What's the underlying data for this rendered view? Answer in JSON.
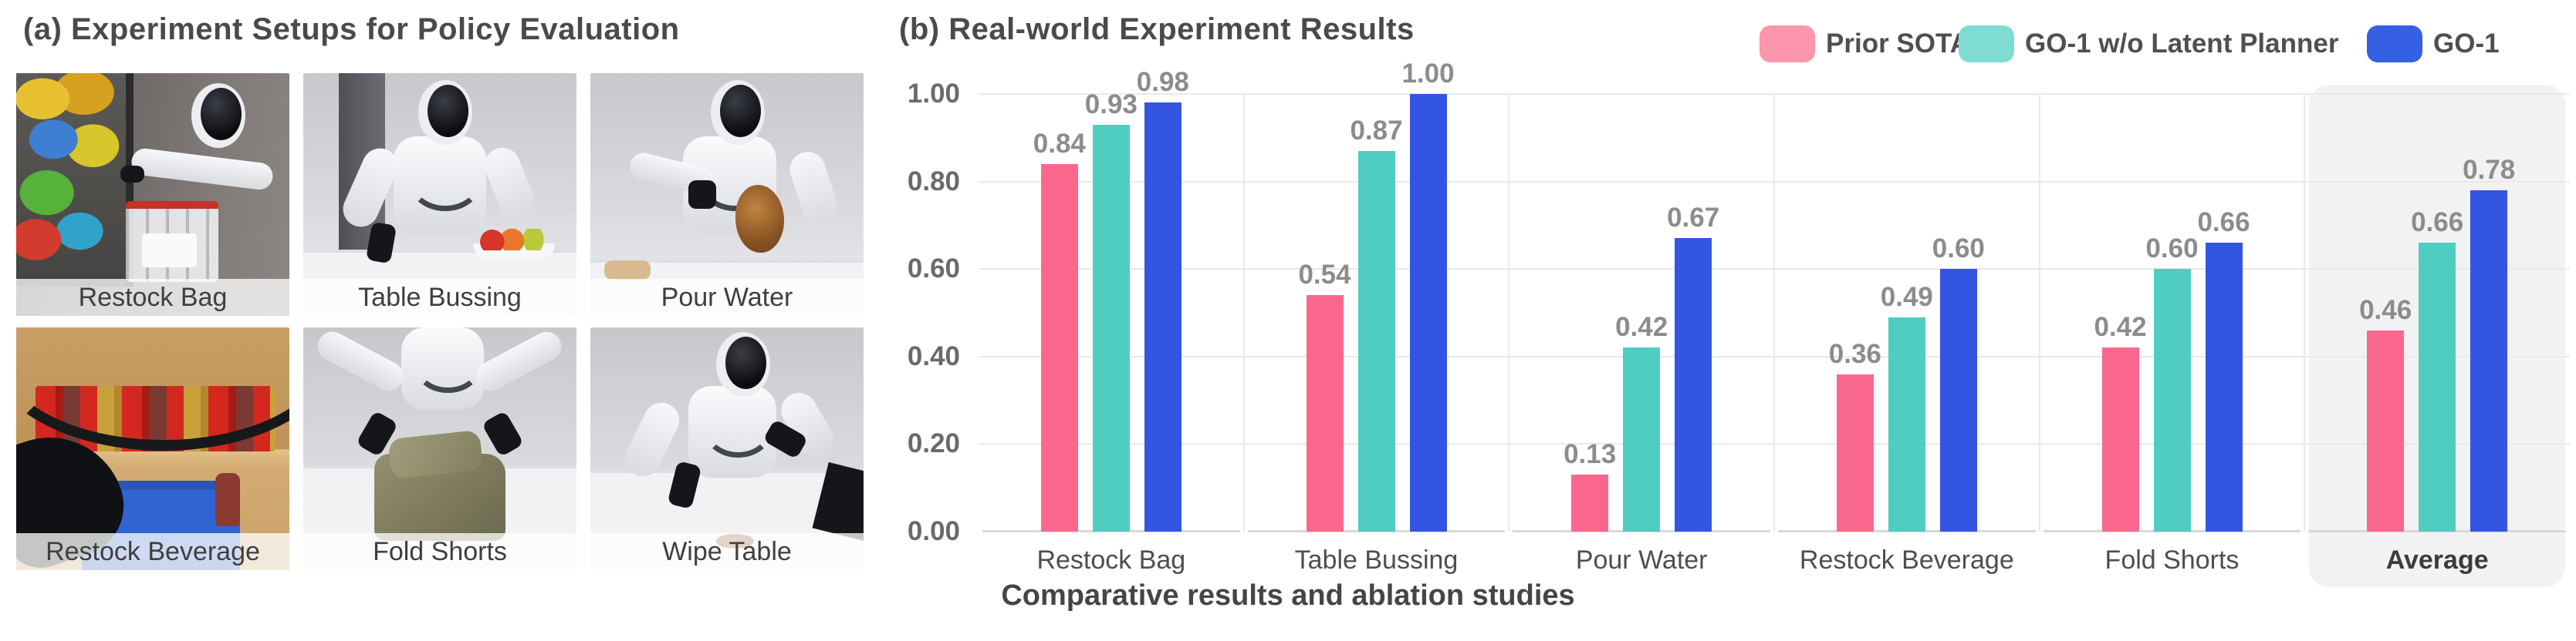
{
  "panel_a": {
    "title": "(a) Experiment Setups for Policy Evaluation",
    "photos": [
      {
        "label": "Restock Bag"
      },
      {
        "label": "Table Bussing"
      },
      {
        "label": "Pour Water"
      },
      {
        "label": "Restock Beverage"
      },
      {
        "label": "Fold Shorts"
      },
      {
        "label": "Wipe Table"
      }
    ]
  },
  "panel_b": {
    "title": "(b) Real-world Experiment Results",
    "caption": "Comparative results and ablation studies",
    "legend": [
      {
        "label": "Prior SOTA",
        "color": "#FC96AD"
      },
      {
        "label": "GO-1 w/o Latent Planner",
        "color": "#7FDCD2"
      },
      {
        "label": "GO-1",
        "color": "#3560E3"
      }
    ]
  },
  "chart_data": {
    "type": "bar",
    "title": "(b) Real-world Experiment Results",
    "categories": [
      "Restock Bag",
      "Table Bussing",
      "Pour Water",
      "Restock Beverage",
      "Fold Shorts",
      "Average"
    ],
    "series": [
      {
        "name": "Prior SOTA",
        "color": "#F9688C",
        "values": [
          0.84,
          0.54,
          0.13,
          0.36,
          0.42,
          0.46
        ]
      },
      {
        "name": "GO-1 w/o Latent Planner",
        "color": "#50CDC1",
        "values": [
          0.93,
          0.87,
          0.42,
          0.49,
          0.6,
          0.66
        ]
      },
      {
        "name": "GO-1",
        "color": "#3355E2",
        "values": [
          0.98,
          1.0,
          0.67,
          0.6,
          0.66,
          0.78
        ]
      }
    ],
    "ylim": [
      0,
      1.0
    ],
    "yticks": [
      "1.00",
      "0.80",
      "0.60",
      "0.40",
      "0.20",
      "0.00"
    ],
    "grid": true,
    "legend_position": "top-right",
    "highlight_category": "Average",
    "value_labels": true,
    "xlabel": "",
    "ylabel": "",
    "caption": "Comparative results and ablation studies"
  }
}
